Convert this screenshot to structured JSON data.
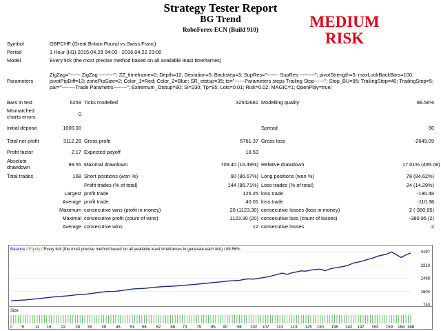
{
  "header": {
    "title": "Strategy Tester Report",
    "subtitle": "BG Trend",
    "server": "RoboForex-ECN (Build 910)",
    "risk_line1": "MEDIUM",
    "risk_line2": "RISK"
  },
  "report": {
    "symbol_label": "Symbol",
    "symbol_value": "GBPCHF (Great Britain Pound vs Swiss Franc)",
    "period_label": "Period",
    "period_value": "1 Hour (H1) 2015.04.28 04:00 - 2016.04.22 23:00",
    "model_label": "Model",
    "model_value": "Every tick (the most precise method based on all available least timeframes)",
    "params_label": "Parameters",
    "params_value": "ZigZag=\"------ ZigZag ---------\"; ZZ_timeframe=0; Depth=12; Deviation=5; Backstep=3; SupRes=\"------- SupRes ---------\"; pivotStrength=5; maxLookBackBars=100; pivotPipDiff=13; zonePipSize=2; Color_1=Red; Color_2=Blue; SR_otstup=35; ts=\"------Parameters steps Trailing Stop------\"; Stop_BU=95; TrailingStop=40; TrailingStep=5; par=\"--------Trade Parametrs--------\"; Extremum_Otstup=90; Sl=230; Tp=95; Lots=0.01; Risk=0.02; MAGIC=1; OpenPlay=true;",
    "bars_label": "Bars in test",
    "bars_value": "6259",
    "ticks_label": "Ticks modelled",
    "ticks_value": "32542681",
    "quality_label": "Modelling quality",
    "quality_value": "88.56%",
    "mismatch_label": "Mismatched charts errors",
    "mismatch_value": "0",
    "deposit_label": "Initial deposit",
    "deposit_value": "1000.00",
    "spread_label": "Spread",
    "spread_value": "60",
    "netprofit_label": "Total net profit",
    "netprofit_value": "3112.28",
    "grossprofit_label": "Gross profit",
    "grossprofit_value": "5761.37",
    "grossloss_label": "Gross loss",
    "grossloss_value": "-2649.09",
    "pf_label": "Profit factor",
    "pf_value": "2.17",
    "payoff_label": "Expected payoff",
    "payoff_value": "18.53",
    "absdd_label": "Absolute drawdown",
    "absdd_value": "99.55",
    "maxdd_label": "Maximal drawdown",
    "maxdd_value": "709.40 (16.49%)",
    "reldd_label": "Relative drawdown",
    "reldd_value": "17.01% (495.08)",
    "trades_label": "Total trades",
    "trades_value": "168",
    "short_label": "Short positions (won %)",
    "short_value": "90 (86.67%)",
    "long_label": "Long positions (won %)",
    "long_value": "78 (84.62%)",
    "profittrades_label": "Profit trades (% of total)",
    "profittrades_value": "144 (85.71%)",
    "losstrades_label": "Loss trades (% of total)",
    "losstrades_value": "24 (14.29%)",
    "largest_label": "Largest",
    "largest_pt_label": "profit trade",
    "largest_pt_value": "125.25",
    "largest_lt_label": "loss trade",
    "largest_lt_value": "-190.48",
    "average_label": "Average",
    "average_pt_label": "profit trade",
    "average_pt_value": "40.01",
    "average_lt_label": "loss trade",
    "average_lt_value": "-110.38",
    "maximum_label": "Maximum",
    "max_cw_label": "consecutive wins (profit in money)",
    "max_cw_value": "20 (1123.30)",
    "max_cl_label": "consecutive losses (loss in money)",
    "max_cl_value": "2 (-380.95)",
    "maximal_label": "Maximal",
    "maximal_cp_label": "consecutive profit (count of wins)",
    "maximal_cp_value": "1123.30 (20)",
    "maximal_cl_label": "consecutive loss (count of losses)",
    "maximal_cl_value": "-380.95 (2)",
    "avg_label": "Average",
    "avg_cw_label": "consecutive wins",
    "avg_cw_value": "12",
    "avg_cl_label": "consecutive losses",
    "avg_cl_value": "2"
  },
  "chart_data": {
    "type": "line",
    "legend_balance": "Balance",
    "legend_sep": " / ",
    "legend_equity": "Equity",
    "legend_rest": " / Every tick (the most precise method based on all available least timeframes to generate each tick) / 88.56%",
    "yticks": [
      "4197",
      "3310",
      "2468",
      "1604",
      "740"
    ],
    "xticks": [
      "0",
      "5",
      "11",
      "16",
      "22",
      "28",
      "33",
      "39",
      "45",
      "51",
      "56",
      "62",
      "68",
      "73",
      "79",
      "85",
      "90",
      "96",
      "102",
      "107",
      "113",
      "119",
      "125",
      "130",
      "136",
      "142",
      "147",
      "153",
      "159",
      "164",
      "168"
    ],
    "size_label": "Size",
    "ylim": [
      740,
      4197
    ],
    "xlim": [
      0,
      168
    ],
    "balance": [
      [
        0,
        1000
      ],
      [
        6,
        1060
      ],
      [
        12,
        1150
      ],
      [
        18,
        1250
      ],
      [
        24,
        1330
      ],
      [
        28,
        1400
      ],
      [
        32,
        1440
      ],
      [
        36,
        1520
      ],
      [
        40,
        1600
      ],
      [
        44,
        1620
      ],
      [
        48,
        1700
      ],
      [
        52,
        1780
      ],
      [
        56,
        1810
      ],
      [
        60,
        1870
      ],
      [
        64,
        1930
      ],
      [
        68,
        1950
      ],
      [
        72,
        2000
      ],
      [
        76,
        2050
      ],
      [
        80,
        2110
      ],
      [
        84,
        2170
      ],
      [
        88,
        2230
      ],
      [
        92,
        2300
      ],
      [
        96,
        2330
      ],
      [
        98,
        2390
      ],
      [
        100,
        2430
      ],
      [
        102,
        2410
      ],
      [
        104,
        2460
      ],
      [
        106,
        2510
      ],
      [
        108,
        2560
      ],
      [
        110,
        2640
      ],
      [
        112,
        2720
      ],
      [
        114,
        2800
      ],
      [
        116,
        2720
      ],
      [
        118,
        2820
      ],
      [
        120,
        2880
      ],
      [
        122,
        2950
      ],
      [
        124,
        2930
      ],
      [
        126,
        3000
      ],
      [
        128,
        3040
      ],
      [
        130,
        3060
      ],
      [
        132,
        2960
      ],
      [
        134,
        3070
      ],
      [
        136,
        3140
      ],
      [
        138,
        3190
      ],
      [
        140,
        3240
      ],
      [
        142,
        3330
      ],
      [
        144,
        3460
      ],
      [
        146,
        3520
      ],
      [
        148,
        3600
      ],
      [
        150,
        3700
      ],
      [
        152,
        3780
      ],
      [
        154,
        3900
      ],
      [
        156,
        3970
      ],
      [
        158,
        4050
      ],
      [
        160,
        4180
      ],
      [
        162,
        4000
      ],
      [
        164,
        3820
      ],
      [
        166,
        3990
      ],
      [
        168,
        4112
      ]
    ],
    "colors": {
      "balance": "#1c2a8c",
      "equity": "#1a9a1a",
      "grid": "#dddddd",
      "size": "#27a327",
      "legend_blue": "#0000cc"
    }
  }
}
